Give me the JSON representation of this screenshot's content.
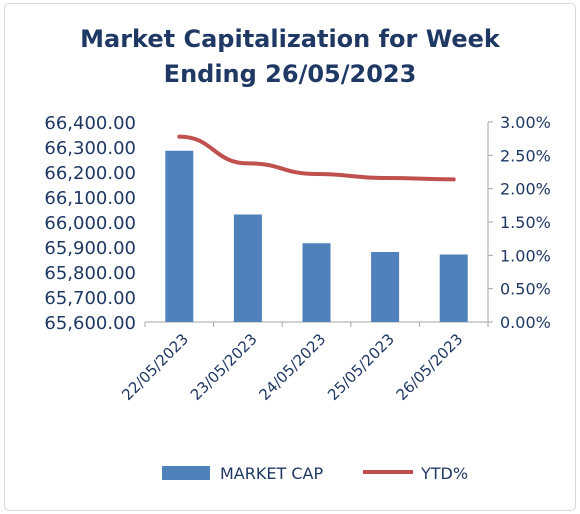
{
  "chart_data": {
    "type": "bar",
    "title_lines": [
      "Market Capitalization for Week",
      "Ending 26/05/2023"
    ],
    "categories": [
      "22/05/2023",
      "23/05/2023",
      "24/05/2023",
      "25/05/2023",
      "26/05/2023"
    ],
    "series": [
      {
        "name": "MARKET CAP",
        "type": "bar",
        "axis": "left",
        "color": "#4f81bd",
        "values": [
          66285,
          66030,
          65915,
          65880,
          65870
        ]
      },
      {
        "name": "YTD%",
        "type": "line",
        "axis": "right",
        "color": "#c0504d",
        "values": [
          2.78,
          2.38,
          2.22,
          2.16,
          2.14
        ]
      }
    ],
    "left_axis": {
      "min": 65600,
      "max": 66400,
      "ticks": [
        "66,400.00",
        "66,300.00",
        "66,200.00",
        "66,100.00",
        "66,000.00",
        "65,900.00",
        "65,800.00",
        "65,700.00",
        "65,600.00"
      ]
    },
    "right_axis": {
      "min": 0,
      "max": 3,
      "ticks": [
        "3.00%",
        "2.50%",
        "2.00%",
        "1.50%",
        "1.00%",
        "0.50%",
        "0.00%"
      ]
    },
    "grid": false,
    "legend_position": "bottom"
  }
}
